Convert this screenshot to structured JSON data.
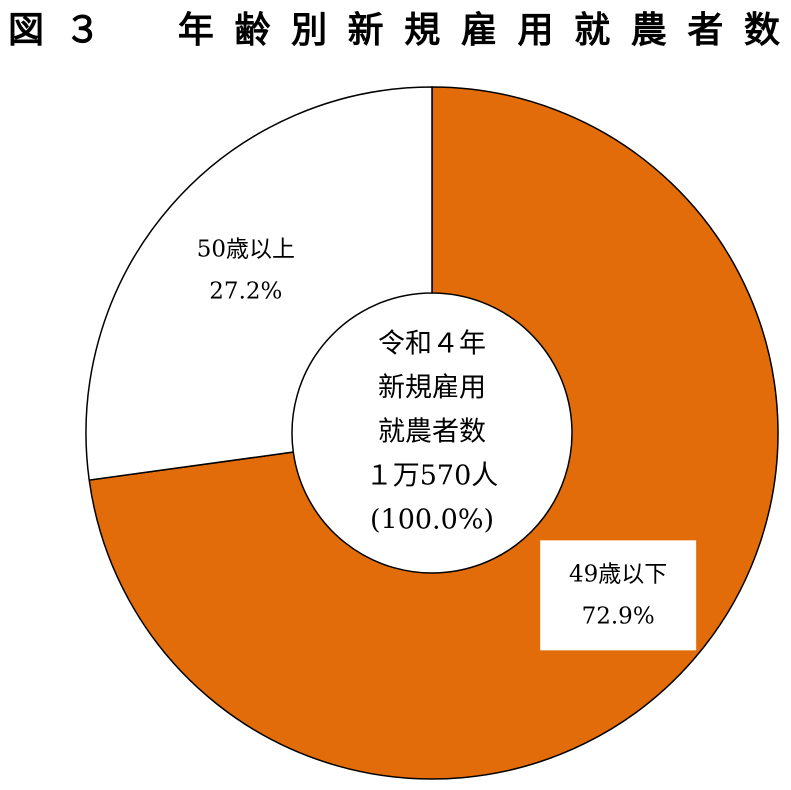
{
  "chart_data": {
    "type": "pie",
    "donut": true,
    "title": "図３　年齢別新規雇用就農者数",
    "categories": [
      "49歳以下",
      "50歳以上"
    ],
    "values": [
      72.9,
      27.2
    ],
    "value_labels": [
      "72.9%",
      "27.2%"
    ],
    "colors": [
      "#e36c0a",
      "#ffffff"
    ],
    "center_text": [
      "令和４年",
      "新規雇用",
      "就農者数",
      "１万570人",
      "(100.0%)"
    ]
  }
}
